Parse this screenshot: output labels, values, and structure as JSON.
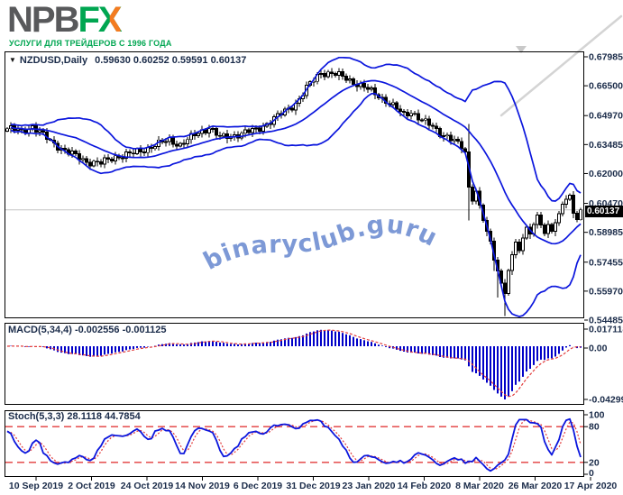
{
  "header": {
    "logo_npb": "NPB",
    "logo_f": "F",
    "logo_x": "X",
    "tagline": "УСЛУГИ ДЛЯ ТРЕЙДЕРОВ С 1996 ГОДА"
  },
  "watermark": {
    "text": "binaryclub.guru"
  },
  "colors": {
    "accent_green": "#00A651",
    "accent_orange": "#F47B20",
    "logo_gray": "#58595B",
    "text": "#1a2b49",
    "band_blue": "#0b16dd",
    "macd_bar": "#0000c8",
    "signal_red": "#e23b3b",
    "level_red": "#e23b3b",
    "watermark": "#7d99d6",
    "price_line": "#c4c4c4",
    "tag_bg": "#000000",
    "tag_text": "#ffffff"
  },
  "chart_data": [
    {
      "type": "candlestick",
      "symbol": "NZDUSD,Daily",
      "ohlc_text": "0.59630 0.60252 0.59591 0.60137",
      "open": "0.59630",
      "high": "0.60252",
      "low": "0.59591",
      "close": "0.60137",
      "last_price": "0.60137",
      "indicator": "Bollinger Bands (blue, period 20, dev 2)",
      "bars": 160,
      "y_ticks": [
        "0.67985",
        "0.66500",
        "0.64970",
        "0.63485",
        "0.62000",
        "0.60470",
        "0.58985",
        "0.57455",
        "0.55970",
        "0.54485"
      ],
      "x_ticks": [
        "10 Sep 2019",
        "2 Oct 2019",
        "24 Oct 2019",
        "14 Nov 2019",
        "6 Dec 2019",
        "31 Dec 2019",
        "23 Jan 2020",
        "14 Feb 2020",
        "8 Mar 2020",
        "26 Mar 2020",
        "17 Apr 2020"
      ],
      "anchors": [
        [
          0,
          0.643
        ],
        [
          4,
          0.6418
        ],
        [
          7,
          0.6442
        ],
        [
          12,
          0.6365
        ],
        [
          17,
          0.6308
        ],
        [
          22,
          0.6262
        ],
        [
          26,
          0.6252
        ],
        [
          30,
          0.6288
        ],
        [
          35,
          0.6302
        ],
        [
          40,
          0.6338
        ],
        [
          45,
          0.6372
        ],
        [
          48,
          0.6348
        ],
        [
          53,
          0.6408
        ],
        [
          56,
          0.6438
        ],
        [
          59,
          0.6382
        ],
        [
          63,
          0.6398
        ],
        [
          69,
          0.6422
        ],
        [
          75,
          0.6492
        ],
        [
          80,
          0.656
        ],
        [
          84,
          0.666
        ],
        [
          87,
          0.672
        ],
        [
          90,
          0.6712
        ],
        [
          94,
          0.669
        ],
        [
          98,
          0.665
        ],
        [
          103,
          0.66
        ],
        [
          106,
          0.656
        ],
        [
          108,
          0.653
        ],
        [
          110,
          0.65
        ],
        [
          112,
          0.652
        ],
        [
          115,
          0.647
        ],
        [
          118,
          0.644
        ],
        [
          120,
          0.641
        ],
        [
          122,
          0.639
        ],
        [
          124,
          0.6365
        ],
        [
          126,
          0.633
        ],
        [
          127,
          0.631
        ],
        [
          128,
          0.613
        ],
        [
          129,
          0.6065
        ],
        [
          130,
          0.611
        ],
        [
          131,
          0.6035
        ],
        [
          132,
          0.596
        ],
        [
          133,
          0.59
        ],
        [
          134,
          0.585
        ],
        [
          135,
          0.576
        ],
        [
          136,
          0.57
        ],
        [
          137,
          0.564
        ],
        [
          138,
          0.559
        ],
        [
          139,
          0.57
        ],
        [
          140,
          0.578
        ],
        [
          141,
          0.585
        ],
        [
          142,
          0.58
        ],
        [
          143,
          0.587
        ],
        [
          144,
          0.593
        ],
        [
          145,
          0.589
        ],
        [
          146,
          0.594
        ],
        [
          147,
          0.599
        ],
        [
          148,
          0.593
        ],
        [
          149,
          0.589
        ],
        [
          150,
          0.594
        ],
        [
          151,
          0.59
        ],
        [
          152,
          0.595
        ],
        [
          153,
          0.6
        ],
        [
          154,
          0.604
        ],
        [
          155,
          0.607
        ],
        [
          156,
          0.609
        ],
        [
          157,
          0.599
        ],
        [
          158,
          0.5963
        ],
        [
          159,
          0.60137
        ]
      ],
      "specials": {
        "128": {
          "o": 0.631,
          "h": 0.6455,
          "l": 0.596
        },
        "135": {
          "l": 0.57
        },
        "136": {
          "l": 0.5565
        },
        "138": {
          "l": 0.5469
        },
        "159": {
          "o": 0.5963,
          "h": 0.60252,
          "l": 0.59591,
          "c": 0.60137
        }
      }
    },
    {
      "type": "bar",
      "label": "MACD(5,34,4)",
      "values_text": "-0.002556 -0.001125",
      "macd": "-0.002556",
      "signal": "-0.001125",
      "y_ticks": [
        "0.017118",
        "0.00",
        "-0.042995"
      ],
      "params": {
        "fast": 5,
        "slow": 34,
        "signal": 4
      }
    },
    {
      "type": "line",
      "label": "Stoch(5,3,3)",
      "values_text": "28.1118 44.7854",
      "k": "28.1118",
      "d": "44.7854",
      "levels": [
        80,
        20
      ],
      "y_ticks": [
        "100",
        "80",
        "20",
        "0"
      ],
      "params": {
        "k": 5,
        "d": 3,
        "slowing": 3
      }
    }
  ]
}
